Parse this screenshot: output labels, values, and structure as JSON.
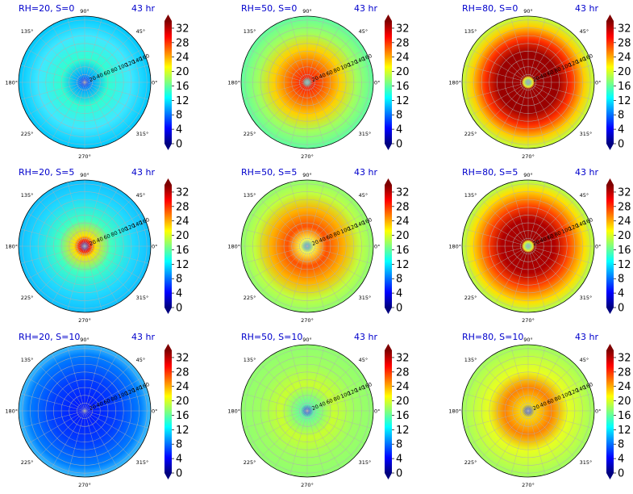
{
  "colormap": {
    "name": "jet",
    "stops": [
      "#00007f",
      "#0000ff",
      "#007fff",
      "#00ffff",
      "#7fff7f",
      "#ffff00",
      "#ff7f00",
      "#ff0000",
      "#7f0000"
    ]
  },
  "chart_data": [
    {
      "type": "heatmap",
      "projection": "polar",
      "title": "RH=20, S=0",
      "time_label": "43 hr",
      "angular_ticks": [
        "0°",
        "45°",
        "90°",
        "135°",
        "180°",
        "225°",
        "270°",
        "315°"
      ],
      "radial_ticks": [
        20,
        40,
        60,
        80,
        100,
        120,
        140,
        160
      ],
      "colorbar": {
        "ticks": [
          0,
          4,
          8,
          12,
          16,
          20,
          24,
          28,
          32
        ],
        "range": [
          0,
          34
        ]
      }
    },
    {
      "type": "heatmap",
      "projection": "polar",
      "title": "RH=50, S=0",
      "time_label": "43 hr",
      "angular_ticks": [
        "0°",
        "45°",
        "90°",
        "135°",
        "180°",
        "225°",
        "270°",
        "315°"
      ],
      "radial_ticks": [
        20,
        40,
        60,
        80,
        100,
        120,
        140,
        160
      ],
      "colorbar": {
        "ticks": [
          0,
          4,
          8,
          12,
          16,
          20,
          24,
          28,
          32
        ],
        "range": [
          0,
          34
        ]
      }
    },
    {
      "type": "heatmap",
      "projection": "polar",
      "title": "RH=80, S=0",
      "time_label": "43 hr",
      "angular_ticks": [
        "0°",
        "45°",
        "90°",
        "135°",
        "180°",
        "225°",
        "270°",
        "315°"
      ],
      "radial_ticks": [
        20,
        40,
        60,
        80,
        100,
        120,
        140,
        160
      ],
      "colorbar": {
        "ticks": [
          0,
          4,
          8,
          12,
          16,
          20,
          24,
          28,
          32
        ],
        "range": [
          0,
          34
        ]
      }
    },
    {
      "type": "heatmap",
      "projection": "polar",
      "title": "RH=20, S=5",
      "time_label": "43 hr",
      "angular_ticks": [
        "0°",
        "45°",
        "90°",
        "135°",
        "180°",
        "225°",
        "270°",
        "315°"
      ],
      "radial_ticks": [
        20,
        40,
        60,
        80,
        100,
        120,
        140,
        160
      ],
      "colorbar": {
        "ticks": [
          0,
          4,
          8,
          12,
          16,
          20,
          24,
          28,
          32
        ],
        "range": [
          0,
          34
        ]
      }
    },
    {
      "type": "heatmap",
      "projection": "polar",
      "title": "RH=50, S=5",
      "time_label": "43 hr",
      "angular_ticks": [
        "0°",
        "45°",
        "90°",
        "135°",
        "180°",
        "225°",
        "270°",
        "315°"
      ],
      "radial_ticks": [
        20,
        40,
        60,
        80,
        100,
        120,
        140,
        160
      ],
      "colorbar": {
        "ticks": [
          0,
          4,
          8,
          12,
          16,
          20,
          24,
          28,
          32
        ],
        "range": [
          0,
          34
        ]
      }
    },
    {
      "type": "heatmap",
      "projection": "polar",
      "title": "RH=80, S=5",
      "time_label": "43 hr",
      "angular_ticks": [
        "0°",
        "45°",
        "90°",
        "135°",
        "180°",
        "225°",
        "270°",
        "315°"
      ],
      "radial_ticks": [
        20,
        40,
        60,
        80,
        100,
        120,
        140,
        160
      ],
      "colorbar": {
        "ticks": [
          0,
          4,
          8,
          12,
          16,
          20,
          24,
          28,
          32
        ],
        "range": [
          0,
          34
        ]
      }
    },
    {
      "type": "heatmap",
      "projection": "polar",
      "title": "RH=20, S=10",
      "time_label": "43 hr",
      "angular_ticks": [
        "0°",
        "45°",
        "90°",
        "135°",
        "180°",
        "225°",
        "270°",
        "315°"
      ],
      "radial_ticks": [
        20,
        40,
        60,
        80,
        100,
        120,
        140,
        160
      ],
      "colorbar": {
        "ticks": [
          0,
          4,
          8,
          12,
          16,
          20,
          24,
          28,
          32
        ],
        "range": [
          0,
          34
        ]
      }
    },
    {
      "type": "heatmap",
      "projection": "polar",
      "title": "RH=50, S=10",
      "time_label": "43 hr",
      "angular_ticks": [
        "0°",
        "45°",
        "90°",
        "135°",
        "180°",
        "225°",
        "270°",
        "315°"
      ],
      "radial_ticks": [
        20,
        40,
        60,
        80,
        100,
        120,
        140,
        160
      ],
      "colorbar": {
        "ticks": [
          0,
          4,
          8,
          12,
          16,
          20,
          24,
          28,
          32
        ],
        "range": [
          0,
          34
        ]
      }
    },
    {
      "type": "heatmap",
      "projection": "polar",
      "title": "RH=80, S=10",
      "time_label": "43 hr",
      "angular_ticks": [
        "0°",
        "45°",
        "90°",
        "135°",
        "180°",
        "225°",
        "270°",
        "315°"
      ],
      "radial_ticks": [
        20,
        40,
        60,
        80,
        100,
        120,
        140,
        160
      ],
      "colorbar": {
        "ticks": [
          0,
          4,
          8,
          12,
          16,
          20,
          24,
          28,
          32
        ],
        "range": [
          0,
          34
        ]
      }
    }
  ]
}
